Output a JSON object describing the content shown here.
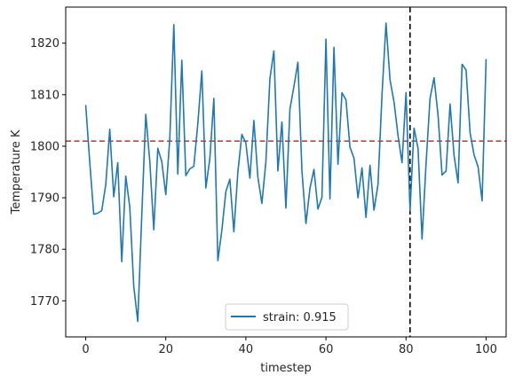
{
  "chart_data": {
    "type": "line",
    "xlabel": "timestep",
    "ylabel": "Temperature K",
    "xlim": [
      -5,
      105
    ],
    "ylim": [
      1763,
      1827
    ],
    "x_ticks": [
      0,
      20,
      40,
      60,
      80,
      100
    ],
    "y_ticks": [
      1770,
      1780,
      1790,
      1800,
      1810,
      1820
    ],
    "legend_position": "bottom-center",
    "grid": false,
    "series": [
      {
        "name": "strain: 0.915",
        "color": "#1f77b4",
        "x": [
          0,
          1,
          2,
          3,
          4,
          5,
          6,
          7,
          8,
          9,
          10,
          11,
          12,
          13,
          14,
          15,
          16,
          17,
          18,
          19,
          20,
          21,
          22,
          23,
          24,
          25,
          26,
          27,
          28,
          29,
          30,
          31,
          32,
          33,
          34,
          35,
          36,
          37,
          38,
          39,
          40,
          41,
          42,
          43,
          44,
          45,
          46,
          47,
          48,
          49,
          50,
          51,
          52,
          53,
          54,
          55,
          56,
          57,
          58,
          59,
          60,
          61,
          62,
          63,
          64,
          65,
          66,
          67,
          68,
          69,
          70,
          71,
          72,
          73,
          74,
          75,
          76,
          77,
          78,
          79,
          80,
          81,
          82,
          83,
          84,
          85,
          86,
          87,
          88,
          89,
          90,
          91,
          92,
          93,
          94,
          95,
          96,
          97,
          98,
          99,
          100
        ],
        "values": [
          1808,
          1797,
          1786.8,
          1787,
          1787.5,
          1792.5,
          1803.3,
          1790.2,
          1796.8,
          1777.6,
          1794.2,
          1788.2,
          1772.8,
          1766,
          1786.6,
          1806.2,
          1797.1,
          1783.8,
          1799.6,
          1797,
          1790.6,
          1801.5,
          1823.6,
          1794.6,
          1816.7,
          1794.3,
          1795.6,
          1796.1,
          1804.4,
          1814.6,
          1791.9,
          1797.6,
          1809.3,
          1777.8,
          1783.7,
          1791.2,
          1793.6,
          1783.4,
          1795,
          1802.3,
          1800.6,
          1793.8,
          1805,
          1794,
          1788.9,
          1797,
          1813.1,
          1818.5,
          1795.2,
          1804.7,
          1788,
          1807.2,
          1811.6,
          1816.3,
          1795.2,
          1785,
          1791.8,
          1795.5,
          1787.8,
          1790.1,
          1820.8,
          1789.8,
          1819.2,
          1796.5,
          1810.4,
          1809,
          1799.8,
          1797.7,
          1790,
          1795.8,
          1786.2,
          1796.3,
          1787.6,
          1792.6,
          1810,
          1823.9,
          1812.9,
          1808.6,
          1802.1,
          1796.8,
          1810.4,
          1787.5,
          1803.5,
          1799.6,
          1782,
          1796.6,
          1809.3,
          1813.3,
          1806,
          1794.4,
          1795.2,
          1808.2,
          1798.2,
          1792.9,
          1815.9,
          1814.8,
          1802.6,
          1798.3,
          1796,
          1789.4,
          1816.9
        ]
      }
    ],
    "annotations": [
      {
        "type": "hline",
        "y": 1801,
        "color": "#d62728",
        "style": "dashed"
      },
      {
        "type": "vline",
        "x": 81,
        "color": "#000000",
        "style": "dashed"
      }
    ]
  }
}
